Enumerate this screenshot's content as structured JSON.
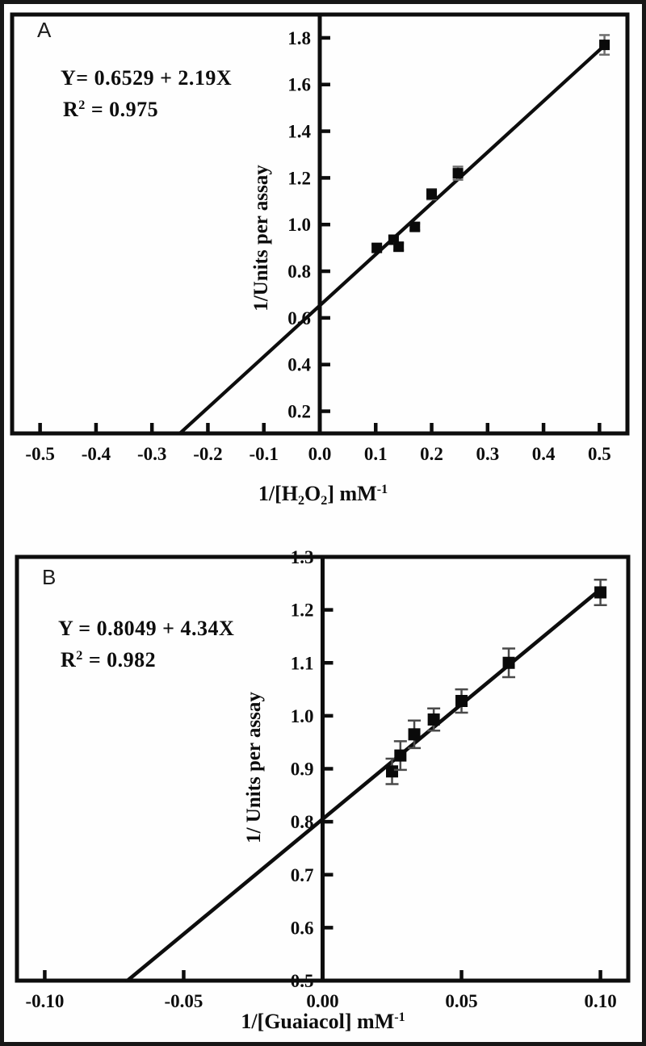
{
  "figure": {
    "background": "#fefefe",
    "frame_color": "#171717",
    "ink_color": "#0d0d0d"
  },
  "chart_data": [
    {
      "type": "scatter",
      "panel_label": "A",
      "equation": "Y= 0.6529 + 2.19X",
      "r2_base": "R",
      "r2_sup": "2",
      "r2_rest": " = 0.975",
      "ylabel": "1/Units per assay",
      "xlabel_segments": [
        {
          "t": "1/[H"
        },
        {
          "t": "2",
          "style": "sub"
        },
        {
          "t": "O"
        },
        {
          "t": "2",
          "style": "sub"
        },
        {
          "t": "] mM"
        },
        {
          "t": "-1",
          "style": "sup"
        }
      ],
      "xlim": [
        -0.55,
        0.55
      ],
      "ylim": [
        0.105,
        1.9
      ],
      "x_ticks": [
        -0.5,
        -0.4,
        -0.3,
        -0.2,
        -0.1,
        0.0,
        0.1,
        0.2,
        0.3,
        0.4,
        0.5
      ],
      "x_tick_labels": [
        "-0.5",
        "-0.4",
        "-0.3",
        "-0.2",
        "-0.1",
        "0.0",
        "0.1",
        "0.2",
        "0.3",
        "0.4",
        "0.5"
      ],
      "y_ticks": [
        0.2,
        0.4,
        0.6,
        0.8,
        1.0,
        1.2,
        1.4,
        1.6,
        1.8
      ],
      "y_tick_labels": [
        "0.2",
        "0.4",
        "0.6",
        "0.8",
        "1.0",
        "1.2",
        "1.4",
        "1.6",
        "1.8"
      ],
      "grid": false,
      "points": {
        "x": [
          0.102,
          0.132,
          0.141,
          0.17,
          0.2,
          0.247,
          0.509
        ],
        "y": [
          0.9,
          0.935,
          0.905,
          0.99,
          1.13,
          1.22,
          1.77
        ],
        "yerr": [
          0.015,
          0.015,
          0.015,
          0.015,
          0.022,
          0.028,
          0.042
        ]
      },
      "fit_line": {
        "intercept": 0.6529,
        "slope": 2.19,
        "x_start": -0.2497,
        "x_end": 0.509
      }
    },
    {
      "type": "scatter",
      "panel_label": "B",
      "equation": "Y = 0.8049 + 4.34X",
      "r2_base": "R",
      "r2_sup": "2",
      "r2_rest": " = 0.982",
      "ylabel": "1/ Units per assay",
      "xlabel_segments": [
        {
          "t": "1/[Guaiacol] mM"
        },
        {
          "t": "-1",
          "style": "sup"
        }
      ],
      "xlim": [
        -0.11,
        0.11
      ],
      "ylim": [
        0.5,
        1.3
      ],
      "x_ticks": [
        -0.1,
        -0.05,
        0.0,
        0.05,
        0.1
      ],
      "x_tick_labels": [
        "-0.10",
        "-0.05",
        "0.00",
        "0.05",
        "0.10"
      ],
      "y_ticks": [
        0.5,
        0.6,
        0.7,
        0.8,
        0.9,
        1.0,
        1.1,
        1.2,
        1.3
      ],
      "y_tick_labels": [
        "0.5",
        "0.6",
        "0.7",
        "0.8",
        "0.9",
        "1.0",
        "1.1",
        "1.2",
        "1.3"
      ],
      "grid": false,
      "points": {
        "x": [
          0.025,
          0.028,
          0.033,
          0.04,
          0.05,
          0.067,
          0.1
        ],
        "y": [
          0.895,
          0.925,
          0.965,
          0.993,
          1.028,
          1.1,
          1.233
        ],
        "yerr": [
          0.024,
          0.027,
          0.026,
          0.021,
          0.022,
          0.027,
          0.024
        ]
      },
      "fit_line": {
        "intercept": 0.8049,
        "slope": 4.34,
        "x_start": -0.0703,
        "x_end": 0.1005
      }
    }
  ]
}
